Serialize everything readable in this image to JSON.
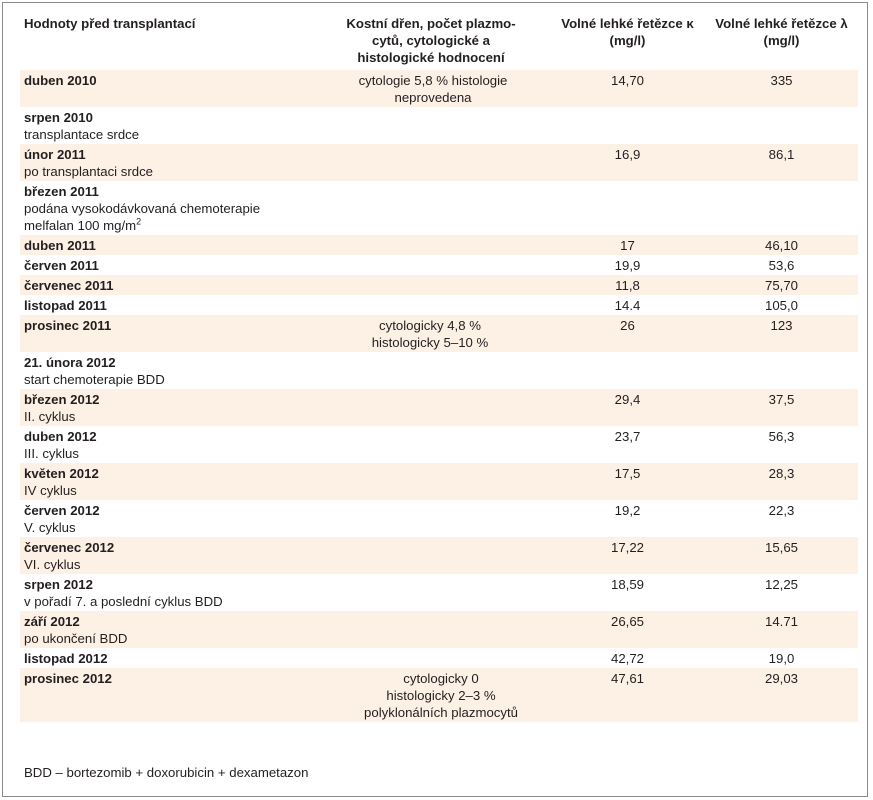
{
  "header": {
    "col1": "Hodnoty před transplantací",
    "col2": "Kostní dřen, počet plazmo- cytů, cytologické a histologické hodnocení",
    "col3_title": "Volné lehké řetězce κ",
    "col3_unit": "(mg/l)",
    "col4_title": "Volné lehké řetězce λ",
    "col4_unit": "(mg/l)"
  },
  "rows": [
    {
      "main": "duben 2010",
      "sub": "",
      "marrow": "cytologie 5,8 % histologie neprovedena",
      "kappa": "14,70",
      "lambda": "335",
      "shaded": true
    },
    {
      "main": "srpen 2010",
      "sub": "transplantace srdce",
      "marrow": "",
      "kappa": "",
      "lambda": "",
      "shaded": false
    },
    {
      "main": "únor 2011",
      "sub": "po transplantaci srdce",
      "marrow": "",
      "kappa": "16,9",
      "lambda": "86,1",
      "shaded": true
    },
    {
      "main": "březen 2011",
      "sub": "podána vysokodávkovaná chemoterapie melfalan 100 mg/m",
      "sub_sup": "2",
      "marrow": "",
      "kappa": "",
      "lambda": "",
      "shaded": false
    },
    {
      "main": "duben 2011",
      "sub": "",
      "marrow": "",
      "kappa": "17",
      "lambda": "46,10",
      "shaded": true
    },
    {
      "main": "červen 2011",
      "sub": "",
      "marrow": "",
      "kappa": "19,9",
      "lambda": "53,6",
      "shaded": false
    },
    {
      "main": "červenec 2011",
      "sub": "",
      "marrow": "",
      "kappa": "11,8",
      "lambda": "75,70",
      "shaded": true
    },
    {
      "main": "listopad 2011",
      "sub": "",
      "marrow": "",
      "kappa": "14.4",
      "lambda": "105,0",
      "shaded": false
    },
    {
      "main": "prosinec 2011",
      "sub": "",
      "marrow": "cytologicky 4,8 %\nhistologicky 5–10 %",
      "kappa": "26",
      "lambda": "123",
      "shaded": true
    },
    {
      "main": "21. února 2012",
      "sub": "start chemoterapie BDD",
      "marrow": "",
      "kappa": "",
      "lambda": "",
      "shaded": false
    },
    {
      "main": "březen 2012",
      "sub": "II. cyklus",
      "marrow": "",
      "kappa": "29,4",
      "lambda": "37,5",
      "shaded": true
    },
    {
      "main": "duben 2012",
      "sub": "III. cyklus",
      "marrow": "",
      "kappa": "23,7",
      "lambda": "56,3",
      "shaded": false
    },
    {
      "main": "květen 2012",
      "sub": "IV cyklus",
      "marrow": "",
      "kappa": "17,5",
      "lambda": "28,3",
      "shaded": true
    },
    {
      "main": "červen 2012",
      "sub": "V. cyklus",
      "marrow": "",
      "kappa": "19,2",
      "lambda": "22,3",
      "shaded": false
    },
    {
      "main": "červenec 2012",
      "sub": "VI. cyklus",
      "marrow": "",
      "kappa": "17,22",
      "lambda": "15,65",
      "shaded": true
    },
    {
      "main": "srpen 2012",
      "sub": "v pořadí 7. a poslední cyklus BDD",
      "marrow": "",
      "kappa": "18,59",
      "lambda": "12,25",
      "shaded": false
    },
    {
      "main": "září 2012",
      "sub": "po ukončení BDD",
      "marrow": "",
      "kappa": "26,65",
      "lambda": "14.71",
      "shaded": true
    },
    {
      "main": "listopad 2012",
      "sub": "",
      "marrow": "",
      "kappa": "42,72",
      "lambda": "19,0",
      "shaded": false
    },
    {
      "main": "prosinec 2012",
      "sub": "",
      "marrow": "cytologicky 0\nhistologicky 2–3 % polyklonálních plazmocytů",
      "kappa": "47,61",
      "lambda": "29,03",
      "shaded": true
    }
  ],
  "footnote": "BDD – bortezomib + doxorubicin + dexametazon",
  "colors": {
    "row_shade": "#fdf0e4",
    "border": "#8a8a8a"
  }
}
